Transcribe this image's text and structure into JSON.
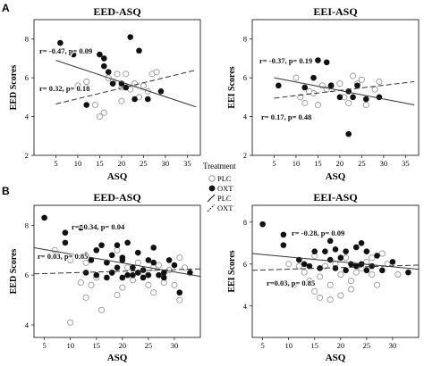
{
  "figure": {
    "panel_labels": [
      "A",
      "B"
    ],
    "legend": {
      "title": "Treatment",
      "entries": [
        {
          "label": "PLC",
          "marker": "open-circle"
        },
        {
          "label": "OXT",
          "marker": "filled-circle"
        },
        {
          "label": "PLC",
          "marker": "solid-line"
        },
        {
          "label": "OXT",
          "marker": "dashed-line"
        }
      ]
    },
    "colors": {
      "ink": "#111111",
      "open_marker": "#9a9a9a",
      "frame": "#222222"
    }
  },
  "chart_data": [
    {
      "type": "scatter",
      "panel": "A",
      "title": "EED-ASQ",
      "xlabel": "ASQ",
      "ylabel": "EED Scores",
      "xlim": [
        0,
        38
      ],
      "ylim": [
        2,
        9
      ],
      "xticks": [
        5,
        10,
        15,
        20,
        25,
        30,
        35
      ],
      "yticks": [
        2,
        4,
        6,
        8
      ],
      "grid": false,
      "annotations": [
        "r= -0.47, p= 0.09",
        "r= 0.32, p= 0.18"
      ],
      "series": [
        {
          "name": "PLC",
          "points": [
            [
              10,
              5.6
            ],
            [
              12,
              5.8
            ],
            [
              14,
              4.6
            ],
            [
              15,
              4.0
            ],
            [
              16,
              4.2
            ],
            [
              17,
              6.0
            ],
            [
              18,
              5.8
            ],
            [
              19,
              6.2
            ],
            [
              20,
              5.5
            ],
            [
              21,
              6.2
            ],
            [
              22,
              5.4
            ],
            [
              23,
              5.7
            ],
            [
              24,
              5.0
            ],
            [
              25,
              5.6
            ],
            [
              26,
              5.3
            ],
            [
              27,
              6.2
            ],
            [
              12,
              5.5
            ],
            [
              20,
              4.8
            ],
            [
              28,
              6.3
            ]
          ]
        },
        {
          "name": "OXT",
          "points": [
            [
              6,
              7.8
            ],
            [
              9,
              7.2
            ],
            [
              12,
              4.6
            ],
            [
              15,
              7.2
            ],
            [
              16,
              7.0
            ],
            [
              16,
              6.6
            ],
            [
              17,
              6.3
            ],
            [
              18,
              5.7
            ],
            [
              21,
              5.5
            ],
            [
              22,
              8.1
            ],
            [
              23,
              4.9
            ],
            [
              24,
              7.4
            ],
            [
              26,
              4.9
            ],
            [
              29,
              5.3
            ],
            [
              20,
              5.7
            ]
          ]
        }
      ],
      "fits": [
        {
          "name": "PLC",
          "style": "solid",
          "x": [
            5,
            37
          ],
          "y": [
            6.9,
            4.5
          ]
        },
        {
          "name": "OXT",
          "style": "dashed",
          "x": [
            5,
            37
          ],
          "y": [
            4.65,
            6.4
          ]
        }
      ]
    },
    {
      "type": "scatter",
      "panel": "A",
      "title": "EEI-ASQ",
      "xlabel": "ASQ",
      "ylabel": "EEI Scores",
      "xlim": [
        0,
        38
      ],
      "ylim": [
        2,
        9
      ],
      "xticks": [
        5,
        10,
        15,
        20,
        25,
        30,
        35
      ],
      "yticks": [
        2,
        4,
        6,
        8
      ],
      "grid": false,
      "annotations": [
        "r= -0.37, p= 0.19",
        "r= 0.17, p= 0.48"
      ],
      "series": [
        {
          "name": "PLC",
          "points": [
            [
              10,
              6.0
            ],
            [
              11,
              5.0
            ],
            [
              12,
              4.7
            ],
            [
              14,
              5.2
            ],
            [
              15,
              4.6
            ],
            [
              16,
              5.6
            ],
            [
              17,
              5.4
            ],
            [
              18,
              5.6
            ],
            [
              20,
              5.7
            ],
            [
              21,
              5.0
            ],
            [
              22,
              4.7
            ],
            [
              23,
              6.1
            ],
            [
              24,
              5.7
            ],
            [
              25,
              5.9
            ],
            [
              26,
              4.6
            ],
            [
              28,
              5.4
            ],
            [
              29,
              5.8
            ],
            [
              13,
              5.3
            ]
          ]
        },
        {
          "name": "OXT",
          "points": [
            [
              6,
              5.6
            ],
            [
              12,
              5.5
            ],
            [
              14,
              6.0
            ],
            [
              17,
              6.8
            ],
            [
              18,
              5.6
            ],
            [
              20,
              5.0
            ],
            [
              22,
              5.3
            ],
            [
              22,
              3.1
            ],
            [
              23,
              5.0
            ],
            [
              24,
              5.6
            ],
            [
              26,
              4.9
            ],
            [
              29,
              5.0
            ],
            [
              15,
              6.9
            ]
          ]
        }
      ],
      "fits": [
        {
          "name": "PLC",
          "style": "solid",
          "x": [
            5,
            37
          ],
          "y": [
            6.0,
            4.6
          ]
        },
        {
          "name": "OXT",
          "style": "dashed",
          "x": [
            5,
            37
          ],
          "y": [
            4.95,
            5.8
          ]
        }
      ]
    },
    {
      "type": "scatter",
      "panel": "B",
      "title": "EED-ASQ",
      "xlabel": "ASQ",
      "ylabel": "EED Scores",
      "xlim": [
        3,
        35
      ],
      "ylim": [
        3.5,
        8.8
      ],
      "xticks": [
        5,
        10,
        15,
        20,
        25,
        30
      ],
      "yticks": [
        4,
        6,
        8
      ],
      "grid": false,
      "annotations": [
        "r= -0.34, p= 0.04",
        "r= 0.03, p= 0.85"
      ],
      "series": [
        {
          "name": "PLC",
          "points": [
            [
              7,
              7.0
            ],
            [
              10,
              4.1
            ],
            [
              10,
              6.6
            ],
            [
              12,
              5.7
            ],
            [
              13,
              6.5
            ],
            [
              14,
              5.6
            ],
            [
              15,
              5.9
            ],
            [
              16,
              4.6
            ],
            [
              17,
              6.5
            ],
            [
              18,
              6.1
            ],
            [
              19,
              7.0
            ],
            [
              20,
              5.5
            ],
            [
              21,
              6.3
            ],
            [
              22,
              5.8
            ],
            [
              23,
              6.5
            ],
            [
              24,
              6.1
            ],
            [
              25,
              5.6
            ],
            [
              26,
              5.3
            ],
            [
              27,
              6.4
            ],
            [
              28,
              5.7
            ],
            [
              29,
              6.2
            ],
            [
              30,
              5.6
            ],
            [
              31,
              6.7
            ],
            [
              32,
              6.3
            ],
            [
              13,
              5.1
            ],
            [
              19,
              5.2
            ],
            [
              26,
              6.3
            ],
            [
              31,
              5.0
            ]
          ]
        },
        {
          "name": "OXT",
          "points": [
            [
              5,
              8.3
            ],
            [
              9,
              7.7
            ],
            [
              9,
              7.3
            ],
            [
              12,
              7.9
            ],
            [
              13,
              6.8
            ],
            [
              14,
              6.6
            ],
            [
              15,
              7.0
            ],
            [
              16,
              7.2
            ],
            [
              17,
              6.5
            ],
            [
              18,
              6.8
            ],
            [
              19,
              7.2
            ],
            [
              19,
              6.3
            ],
            [
              20,
              6.6
            ],
            [
              21,
              7.3
            ],
            [
              21,
              6.0
            ],
            [
              22,
              6.3
            ],
            [
              23,
              6.9
            ],
            [
              23,
              6.1
            ],
            [
              24,
              6.2
            ],
            [
              25,
              6.6
            ],
            [
              26,
              7.1
            ],
            [
              26,
              6.5
            ],
            [
              27,
              6.0
            ],
            [
              28,
              5.9
            ],
            [
              29,
              6.6
            ],
            [
              30,
              6.4
            ],
            [
              31,
              5.3
            ],
            [
              33,
              6.1
            ],
            [
              17,
              5.9
            ],
            [
              18,
              6.1
            ],
            [
              20,
              5.9
            ],
            [
              22,
              6.0
            ],
            [
              24,
              5.9
            ],
            [
              25,
              6.0
            ],
            [
              28,
              6.1
            ],
            [
              15,
              6.0
            ],
            [
              13,
              6.1
            ],
            [
              20,
              6.7
            ]
          ]
        }
      ],
      "fits": [
        {
          "name": "PLC",
          "style": "solid",
          "x": [
            3,
            35
          ],
          "y": [
            7.1,
            5.95
          ]
        },
        {
          "name": "OXT",
          "style": "dashed",
          "x": [
            3,
            35
          ],
          "y": [
            6.05,
            6.25
          ]
        }
      ]
    },
    {
      "type": "scatter",
      "panel": "B",
      "title": "EEI-ASQ",
      "xlabel": "ASQ",
      "ylabel": "EEI Scores",
      "xlim": [
        3,
        35
      ],
      "ylim": [
        2.5,
        8.8
      ],
      "xticks": [
        5,
        10,
        15,
        20,
        25,
        30
      ],
      "yticks": [
        4,
        6,
        8
      ],
      "grid": false,
      "annotations": [
        "r= -0.28, p= 0.09",
        "r=0.03, p= 0.85"
      ],
      "series": [
        {
          "name": "PLC",
          "points": [
            [
              10,
              6.0
            ],
            [
              11,
              5.0
            ],
            [
              12,
              5.9
            ],
            [
              13,
              5.6
            ],
            [
              14,
              5.2
            ],
            [
              15,
              6.4
            ],
            [
              16,
              4.4
            ],
            [
              16,
              5.4
            ],
            [
              17,
              5.9
            ],
            [
              18,
              5.0
            ],
            [
              19,
              6.0
            ],
            [
              20,
              4.5
            ],
            [
              20,
              5.5
            ],
            [
              21,
              6.3
            ],
            [
              22,
              5.2
            ],
            [
              23,
              5.6
            ],
            [
              24,
              5.8
            ],
            [
              25,
              6.1
            ],
            [
              26,
              6.3
            ],
            [
              27,
              5.0
            ],
            [
              28,
              6.5
            ],
            [
              29,
              6.0
            ],
            [
              31,
              5.5
            ],
            [
              15,
              4.7
            ],
            [
              18,
              4.3
            ],
            [
              22,
              4.8
            ],
            [
              26,
              5.5
            ]
          ]
        },
        {
          "name": "OXT",
          "points": [
            [
              5,
              7.9
            ],
            [
              9,
              7.4
            ],
            [
              9,
              6.9
            ],
            [
              12,
              6.2
            ],
            [
              13,
              6.0
            ],
            [
              15,
              6.6
            ],
            [
              16,
              5.8
            ],
            [
              17,
              6.6
            ],
            [
              18,
              7.1
            ],
            [
              18,
              6.2
            ],
            [
              19,
              5.8
            ],
            [
              20,
              6.3
            ],
            [
              21,
              6.6
            ],
            [
              22,
              6.0
            ],
            [
              23,
              5.9
            ],
            [
              23,
              6.8
            ],
            [
              24,
              6.0
            ],
            [
              25,
              6.6
            ],
            [
              25,
              5.7
            ],
            [
              26,
              5.9
            ],
            [
              27,
              6.4
            ],
            [
              28,
              5.7
            ],
            [
              30,
              6.1
            ],
            [
              33,
              5.6
            ],
            [
              14,
              5.9
            ],
            [
              19,
              6.7
            ],
            [
              21,
              5.7
            ],
            [
              24,
              7.0
            ]
          ]
        }
      ],
      "fits": [
        {
          "name": "PLC",
          "style": "solid",
          "x": [
            3,
            35
          ],
          "y": [
            6.5,
            5.75
          ]
        },
        {
          "name": "OXT",
          "style": "dashed",
          "x": [
            3,
            35
          ],
          "y": [
            5.7,
            5.95
          ]
        }
      ]
    }
  ]
}
